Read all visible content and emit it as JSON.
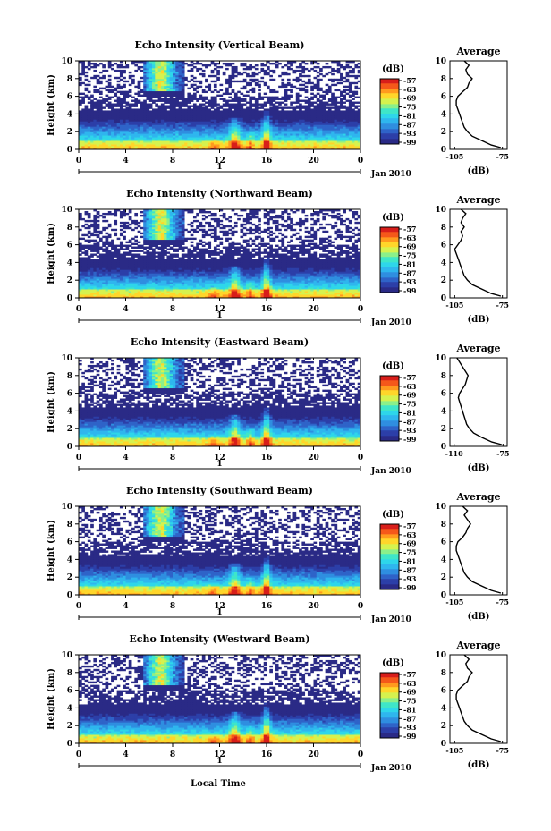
{
  "figure": {
    "xlabel": "Local Time",
    "date_label": "Jan 2010",
    "day_label": "1",
    "cbar_unit": "(dB)",
    "avg_title": "Average",
    "avg_xlabel": "(dB)"
  },
  "colors": {
    "colormap": [
      "#2a2a86",
      "#2c3fa8",
      "#2f63c8",
      "#2f8ee0",
      "#2fb6ee",
      "#2ed6ea",
      "#3fe6c8",
      "#8bf08a",
      "#d6f24e",
      "#ffd62a",
      "#ff9a1e",
      "#f5581a",
      "#d81e1a"
    ],
    "background": "#ffffff",
    "line": "#000000"
  },
  "chart_data": [
    {
      "type": "heatmap",
      "title": "Echo Intensity (Vertical Beam)",
      "ylabel": "Height (km)",
      "xlim": [
        0,
        24
      ],
      "ylim": [
        0,
        10
      ],
      "xticks": [
        "0",
        "4",
        "8",
        "12",
        "16",
        "20",
        "0"
      ],
      "yticks": [
        "0",
        "2",
        "4",
        "6",
        "8",
        "10"
      ],
      "colorbar": {
        "unit": "(dB)",
        "ticks": [
          "-57",
          "-63",
          "-69",
          "-75",
          "-81",
          "-87",
          "-93",
          "-99"
        ]
      },
      "average": {
        "title": "Average",
        "xlabel": "(dB)",
        "xticks": [
          "-105",
          "-75"
        ],
        "xlim": [
          -108,
          -72
        ],
        "height": [
          0.2,
          0.5,
          1,
          1.5,
          2,
          2.5,
          3,
          3.5,
          4,
          4.5,
          5,
          5.5,
          6,
          6.5,
          7,
          7.5,
          8,
          8.5,
          9,
          9.5,
          10
        ],
        "db": [
          -76,
          -82,
          -88,
          -94,
          -97,
          -99,
          -100,
          -101,
          -102,
          -103,
          -104,
          -104,
          -103,
          -100,
          -97,
          -96,
          -94,
          -97,
          -98,
          -96,
          -99
        ]
      },
      "avg_line": {
        "title": "Average",
        "xlabel": "(dB)"
      }
    },
    {
      "type": "heatmap",
      "title": "Echo Intensity (Northward Beam)",
      "ylabel": "Height (km)",
      "xlim": [
        0,
        24
      ],
      "ylim": [
        0,
        10
      ],
      "xticks": [
        "0",
        "4",
        "8",
        "12",
        "16",
        "20",
        "0"
      ],
      "yticks": [
        "0",
        "2",
        "4",
        "6",
        "8",
        "10"
      ],
      "colorbar": {
        "unit": "(dB)",
        "ticks": [
          "-57",
          "-63",
          "-69",
          "-75",
          "-81",
          "-87",
          "-93",
          "-99"
        ]
      },
      "average": {
        "title": "Average",
        "xlabel": "(dB)",
        "xticks": [
          "-105",
          "-75"
        ],
        "xlim": [
          -108,
          -72
        ],
        "height": [
          0.2,
          0.5,
          1,
          1.5,
          2,
          2.5,
          3,
          3.5,
          4,
          4.5,
          5,
          5.5,
          6,
          6.5,
          7,
          7.5,
          8,
          8.5,
          9,
          9.5,
          10
        ],
        "db": [
          -76,
          -82,
          -88,
          -94,
          -97,
          -99,
          -100,
          -101,
          -102,
          -103,
          -104,
          -105,
          -103,
          -101,
          -100,
          -101,
          -99,
          -101,
          -100,
          -98,
          -101
        ]
      }
    },
    {
      "type": "heatmap",
      "title": "Echo Intensity (Eastward Beam)",
      "ylabel": "Height (km)",
      "xlim": [
        0,
        24
      ],
      "ylim": [
        0,
        10
      ],
      "xticks": [
        "0",
        "4",
        "8",
        "12",
        "16",
        "20",
        "0"
      ],
      "yticks": [
        "0",
        "2",
        "4",
        "6",
        "8",
        "10"
      ],
      "colorbar": {
        "unit": "(dB)",
        "ticks": [
          "-57",
          "-63",
          "-69",
          "-75",
          "-81",
          "-87",
          "-93",
          "-99"
        ]
      },
      "average": {
        "title": "Average",
        "xlabel": "(dB)",
        "xticks": [
          "-110",
          "-75"
        ],
        "xlim": [
          -113,
          -72
        ],
        "height": [
          0.2,
          0.5,
          1,
          1.5,
          2,
          2.5,
          3,
          3.5,
          4,
          4.5,
          5,
          5.5,
          6,
          6.5,
          7,
          7.5,
          8,
          8.5,
          9,
          9.5,
          10
        ],
        "db": [
          -76,
          -83,
          -90,
          -96,
          -99,
          -101,
          -102,
          -103,
          -104,
          -105,
          -106,
          -107,
          -106,
          -104,
          -102,
          -101,
          -100,
          -102,
          -104,
          -106,
          -108
        ]
      }
    },
    {
      "type": "heatmap",
      "title": "Echo Intensity (Southward Beam)",
      "ylabel": "Height (km)",
      "xlim": [
        0,
        24
      ],
      "ylim": [
        0,
        10
      ],
      "xticks": [
        "0",
        "4",
        "8",
        "12",
        "16",
        "20",
        "0"
      ],
      "yticks": [
        "0",
        "2",
        "4",
        "6",
        "8",
        "10"
      ],
      "colorbar": {
        "unit": "(dB)",
        "ticks": [
          "-57",
          "-63",
          "-69",
          "-75",
          "-81",
          "-87",
          "-93",
          "-99"
        ]
      },
      "average": {
        "title": "Average",
        "xlabel": "(dB)",
        "xticks": [
          "-105",
          "-75"
        ],
        "xlim": [
          -108,
          -72
        ],
        "height": [
          0.2,
          0.5,
          1,
          1.5,
          2,
          2.5,
          3,
          3.5,
          4,
          4.5,
          5,
          5.5,
          6,
          6.5,
          7,
          7.5,
          8,
          8.5,
          9,
          9.5,
          10
        ],
        "db": [
          -76,
          -82,
          -88,
          -94,
          -97,
          -99,
          -100,
          -101,
          -102,
          -103,
          -104,
          -104,
          -103,
          -100,
          -98,
          -97,
          -95,
          -97,
          -99,
          -97,
          -100
        ]
      }
    },
    {
      "type": "heatmap",
      "title": "Echo Intensity (Westward Beam)",
      "ylabel": "Height (km)",
      "xlim": [
        0,
        24
      ],
      "ylim": [
        0,
        10
      ],
      "xticks": [
        "0",
        "4",
        "8",
        "12",
        "16",
        "20",
        "0"
      ],
      "yticks": [
        "0",
        "2",
        "4",
        "6",
        "8",
        "10"
      ],
      "colorbar": {
        "unit": "(dB)",
        "ticks": [
          "-57",
          "-63",
          "-69",
          "-75",
          "-81",
          "-87",
          "-93",
          "-99"
        ]
      },
      "average": {
        "title": "Average",
        "xlabel": "(dB)",
        "xticks": [
          "-105",
          "-75"
        ],
        "xlim": [
          -108,
          -72
        ],
        "height": [
          0.2,
          0.5,
          1,
          1.5,
          2,
          2.5,
          3,
          3.5,
          4,
          4.5,
          5,
          5.5,
          6,
          6.5,
          7,
          7.5,
          8,
          8.5,
          9,
          9.5,
          10
        ],
        "db": [
          -76,
          -82,
          -88,
          -94,
          -97,
          -99,
          -100,
          -101,
          -102,
          -103,
          -104,
          -104,
          -103,
          -100,
          -97,
          -96,
          -94,
          -97,
          -98,
          -96,
          -99
        ]
      }
    }
  ]
}
